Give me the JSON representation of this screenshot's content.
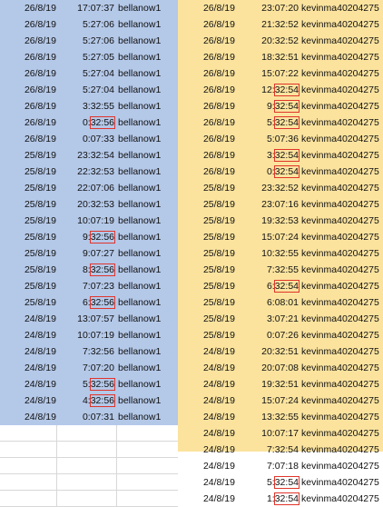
{
  "left": {
    "rows": [
      {
        "date": "26/8/19",
        "pre": "17:07:37",
        "hl": "",
        "user": "bellanow1"
      },
      {
        "date": "26/8/19",
        "pre": "5:27:06",
        "hl": "",
        "user": "bellanow1"
      },
      {
        "date": "26/8/19",
        "pre": "5:27:06",
        "hl": "",
        "user": "bellanow1"
      },
      {
        "date": "26/8/19",
        "pre": "5:27:05",
        "hl": "",
        "user": "bellanow1"
      },
      {
        "date": "26/8/19",
        "pre": "5:27:04",
        "hl": "",
        "user": "bellanow1"
      },
      {
        "date": "26/8/19",
        "pre": "5:27:04",
        "hl": "",
        "user": "bellanow1"
      },
      {
        "date": "26/8/19",
        "pre": "3:32:55",
        "hl": "",
        "user": "bellanow1"
      },
      {
        "date": "26/8/19",
        "pre": "0:",
        "hl": "32:56",
        "user": "bellanow1"
      },
      {
        "date": "26/8/19",
        "pre": "0:07:33",
        "hl": "",
        "user": "bellanow1"
      },
      {
        "date": "25/8/19",
        "pre": "23:32:54",
        "hl": "",
        "user": "bellanow1"
      },
      {
        "date": "25/8/19",
        "pre": "22:32:53",
        "hl": "",
        "user": "bellanow1"
      },
      {
        "date": "25/8/19",
        "pre": "22:07:06",
        "hl": "",
        "user": "bellanow1"
      },
      {
        "date": "25/8/19",
        "pre": "20:32:53",
        "hl": "",
        "user": "bellanow1"
      },
      {
        "date": "25/8/19",
        "pre": "10:07:19",
        "hl": "",
        "user": "bellanow1"
      },
      {
        "date": "25/8/19",
        "pre": "9:",
        "hl": "32:56",
        "user": "bellanow1"
      },
      {
        "date": "25/8/19",
        "pre": "9:07:27",
        "hl": "",
        "user": "bellanow1"
      },
      {
        "date": "25/8/19",
        "pre": "8:",
        "hl": "32:56",
        "user": "bellanow1"
      },
      {
        "date": "25/8/19",
        "pre": "7:07:23",
        "hl": "",
        "user": "bellanow1"
      },
      {
        "date": "25/8/19",
        "pre": "6:",
        "hl": "32:56",
        "user": "bellanow1"
      },
      {
        "date": "24/8/19",
        "pre": "13:07:57",
        "hl": "",
        "user": "bellanow1"
      },
      {
        "date": "24/8/19",
        "pre": "10:07:19",
        "hl": "",
        "user": "bellanow1"
      },
      {
        "date": "24/8/19",
        "pre": "7:32:56",
        "hl": "",
        "user": "bellanow1"
      },
      {
        "date": "24/8/19",
        "pre": "7:07:20",
        "hl": "",
        "user": "bellanow1"
      },
      {
        "date": "24/8/19",
        "pre": "5:",
        "hl": "32:56",
        "user": "bellanow1"
      },
      {
        "date": "24/8/19",
        "pre": "4:",
        "hl": "32:56",
        "user": "bellanow1"
      },
      {
        "date": "24/8/19",
        "pre": "0:07:31",
        "hl": "",
        "user": "bellanow1"
      }
    ]
  },
  "right": {
    "rows": [
      {
        "date": "26/8/19",
        "pre": "23:07:20",
        "hl": "",
        "user": "kevinma40204275"
      },
      {
        "date": "26/8/19",
        "pre": "21:32:52",
        "hl": "",
        "user": "kevinma40204275"
      },
      {
        "date": "26/8/19",
        "pre": "20:32:52",
        "hl": "",
        "user": "kevinma40204275"
      },
      {
        "date": "26/8/19",
        "pre": "18:32:51",
        "hl": "",
        "user": "kevinma40204275"
      },
      {
        "date": "26/8/19",
        "pre": "15:07:22",
        "hl": "",
        "user": "kevinma40204275"
      },
      {
        "date": "26/8/19",
        "pre": "12:",
        "hl": "32:54",
        "user": "kevinma40204275"
      },
      {
        "date": "26/8/19",
        "pre": "9:",
        "hl": "32:54",
        "user": "kevinma40204275"
      },
      {
        "date": "26/8/19",
        "pre": "5:",
        "hl": "32:54",
        "user": "kevinma40204275"
      },
      {
        "date": "26/8/19",
        "pre": "5:07:36",
        "hl": "",
        "user": "kevinma40204275"
      },
      {
        "date": "26/8/19",
        "pre": "3:",
        "hl": "32:54",
        "user": "kevinma40204275"
      },
      {
        "date": "26/8/19",
        "pre": "0:",
        "hl": "32:54",
        "user": "kevinma40204275"
      },
      {
        "date": "25/8/19",
        "pre": "23:32:52",
        "hl": "",
        "user": "kevinma40204275"
      },
      {
        "date": "25/8/19",
        "pre": "23:07:16",
        "hl": "",
        "user": "kevinma40204275"
      },
      {
        "date": "25/8/19",
        "pre": "19:32:53",
        "hl": "",
        "user": "kevinma40204275"
      },
      {
        "date": "25/8/19",
        "pre": "15:07:24",
        "hl": "",
        "user": "kevinma40204275"
      },
      {
        "date": "25/8/19",
        "pre": "10:32:55",
        "hl": "",
        "user": "kevinma40204275"
      },
      {
        "date": "25/8/19",
        "pre": "7:32:55",
        "hl": "",
        "user": "kevinma40204275"
      },
      {
        "date": "25/8/19",
        "pre": "6:",
        "hl": "32:54",
        "user": "kevinma40204275"
      },
      {
        "date": "25/8/19",
        "pre": "6:08:01",
        "hl": "",
        "user": "kevinma40204275"
      },
      {
        "date": "25/8/19",
        "pre": "3:07:21",
        "hl": "",
        "user": "kevinma40204275"
      },
      {
        "date": "25/8/19",
        "pre": "0:07:26",
        "hl": "",
        "user": "kevinma40204275"
      },
      {
        "date": "24/8/19",
        "pre": "20:32:51",
        "hl": "",
        "user": "kevinma40204275"
      },
      {
        "date": "24/8/19",
        "pre": "20:07:08",
        "hl": "",
        "user": "kevinma40204275"
      },
      {
        "date": "24/8/19",
        "pre": "19:32:51",
        "hl": "",
        "user": "kevinma40204275"
      },
      {
        "date": "24/8/19",
        "pre": "15:07:24",
        "hl": "",
        "user": "kevinma40204275"
      },
      {
        "date": "24/8/19",
        "pre": "13:32:55",
        "hl": "",
        "user": "kevinma40204275"
      },
      {
        "date": "24/8/19",
        "pre": "10:07:17",
        "hl": "",
        "user": "kevinma40204275"
      },
      {
        "date": "24/8/19",
        "pre": "7:32:54",
        "hl": "",
        "user": "kevinma40204275"
      },
      {
        "date": "24/8/19",
        "pre": "7:07:18",
        "hl": "",
        "user": "kevinma40204275"
      },
      {
        "date": "24/8/19",
        "pre": "5:",
        "hl": "32:54",
        "user": "kevinma40204275"
      },
      {
        "date": "24/8/19",
        "pre": "1:",
        "hl": "32:54",
        "user": "kevinma40204275"
      }
    ]
  },
  "colors": {
    "left_fill": "#b4c8e8",
    "right_fill": "#fbe39e",
    "highlight_border": "#e0352b"
  }
}
